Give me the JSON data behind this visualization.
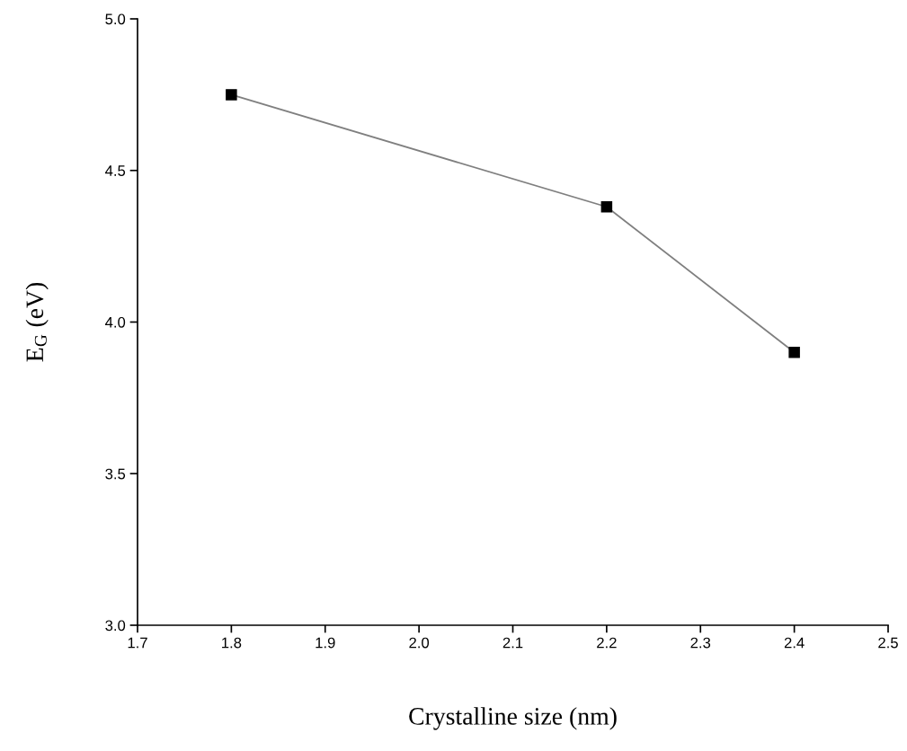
{
  "chart_data": {
    "type": "line",
    "xlabel": "Crystalline size (nm)",
    "ylabel": "E$_{G}$ (eV)",
    "x": [
      1.8,
      2.2,
      2.4
    ],
    "series": [
      {
        "color": "#000000",
        "values": [
          4.75,
          4.38,
          3.9
        ]
      }
    ],
    "marker": "square",
    "line_style": "solid",
    "grid": false,
    "legend": false,
    "xlim": [
      1.7,
      2.5
    ],
    "xticks": [
      1.7,
      1.8,
      1.9,
      {
        "value": 2,
        "label": "2.0"
      },
      2.1,
      2.2,
      2.3,
      2.4,
      2.5
    ],
    "ylim": [
      3.0,
      5.0
    ],
    "yticks": [
      {
        "value": 3,
        "label": "3.0"
      },
      3.5,
      {
        "value": 4,
        "label": "4.0"
      },
      4.5,
      {
        "value": 5,
        "label": "5.0"
      }
    ]
  }
}
